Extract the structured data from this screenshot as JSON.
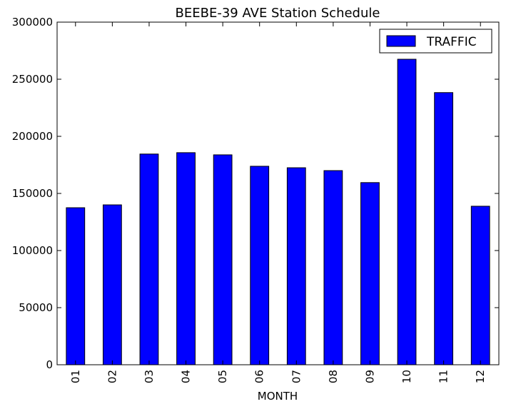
{
  "chart_data": {
    "type": "bar",
    "title": "BEEBE-39 AVE Station Schedule",
    "xlabel": "MONTH",
    "ylabel": "",
    "categories": [
      "01",
      "02",
      "03",
      "04",
      "05",
      "06",
      "07",
      "08",
      "09",
      "10",
      "11",
      "12"
    ],
    "series": [
      {
        "name": "TRAFFIC",
        "color": "#0000ff",
        "values": [
          137500,
          140000,
          184500,
          185700,
          183800,
          173800,
          172500,
          170000,
          159500,
          267500,
          238300,
          138800
        ]
      }
    ],
    "ylim": [
      0,
      300000
    ],
    "yticks": [
      0,
      50000,
      100000,
      150000,
      200000,
      250000,
      300000
    ],
    "ytick_labels": [
      "0",
      "50000",
      "100000",
      "150000",
      "200000",
      "250000",
      "300000"
    ],
    "grid": false,
    "legend_position": "top-right"
  }
}
